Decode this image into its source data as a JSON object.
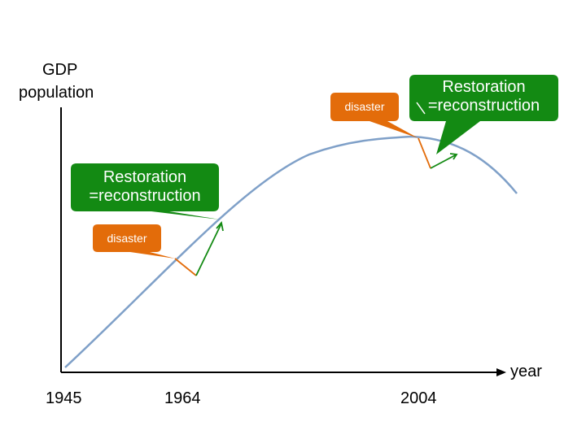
{
  "axes": {
    "y_label_line1": "GDP",
    "y_label_line2": "population",
    "x_label": "year",
    "x_ticks": [
      "1945",
      "1964",
      "2004"
    ]
  },
  "callouts": {
    "restoration_1": {
      "line1": "Restoration",
      "line2": "=reconstruction"
    },
    "disaster_1": {
      "text": "disaster"
    },
    "disaster_2": {
      "text": "disaster"
    },
    "restoration_2": {
      "line1": "Restoration",
      "line2": "=reconstruction"
    }
  },
  "colors": {
    "curve": "#7fa0c8",
    "axis": "#000000",
    "disaster": "#e36c0a",
    "restoration": "#138a13",
    "text_on_callout": "#ffffff"
  }
}
